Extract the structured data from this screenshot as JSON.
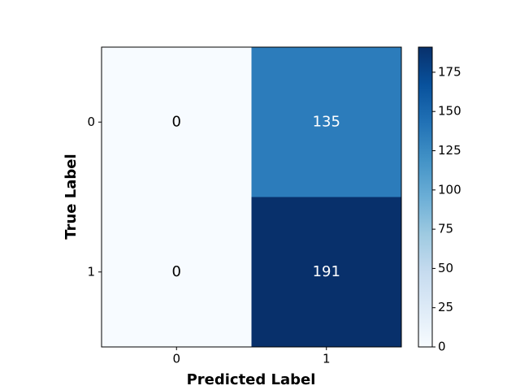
{
  "chart_data": {
    "type": "heatmap",
    "x_label": "Predicted Label",
    "y_label": "True Label",
    "x_categories": [
      "0",
      "1"
    ],
    "y_categories": [
      "0",
      "1"
    ],
    "values": [
      [
        0,
        135
      ],
      [
        0,
        191
      ]
    ],
    "colormap": "Blues",
    "clim": [
      0,
      191
    ],
    "colorbar_ticks": [
      0,
      25,
      50,
      75,
      100,
      125,
      150,
      175
    ]
  }
}
